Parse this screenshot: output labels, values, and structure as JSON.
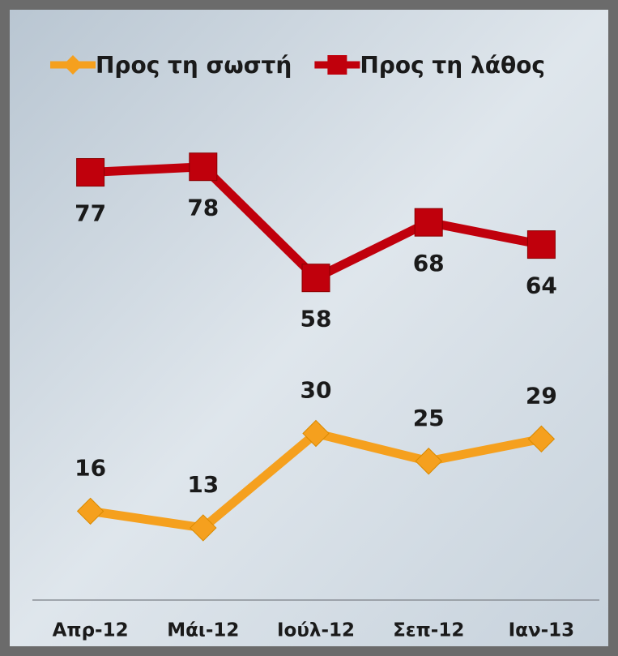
{
  "chart_data": {
    "type": "line",
    "categories": [
      "Απρ-12",
      "Μάι-12",
      "Ιούλ-12",
      "Σεπ-12",
      "Ιαν-13"
    ],
    "series": [
      {
        "name": "Προς τη σωστή",
        "color": "#f5a01e",
        "marker": "diamond",
        "values": [
          16,
          13,
          30,
          25,
          29
        ]
      },
      {
        "name": "Προς τη λάθος",
        "color": "#c0000c",
        "marker": "square",
        "values": [
          77,
          78,
          58,
          68,
          64
        ]
      }
    ],
    "ylim": [
      0,
      100
    ],
    "legend": "top"
  }
}
